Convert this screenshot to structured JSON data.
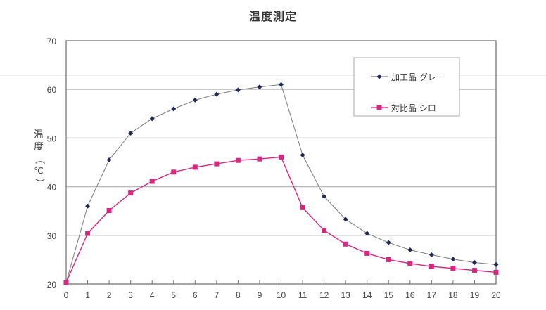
{
  "chart_data": {
    "type": "line",
    "title": "温度測定",
    "xlabel": "",
    "ylabel": "温度（℃）",
    "ylim": [
      20,
      70
    ],
    "xlim": [
      0,
      20
    ],
    "yticks": [
      20,
      30,
      40,
      50,
      60,
      70
    ],
    "x": [
      0,
      1,
      2,
      3,
      4,
      5,
      6,
      7,
      8,
      9,
      10,
      11,
      12,
      13,
      14,
      15,
      16,
      17,
      18,
      19,
      20
    ],
    "grid": true,
    "legend_position": "upper right",
    "series": [
      {
        "name": "加工品 グレー",
        "color": "#1f2a5a",
        "line_color": "#7a7a7a",
        "marker": "diamond",
        "values": [
          20.3,
          36.0,
          45.5,
          51.0,
          54.0,
          56.0,
          57.8,
          59.0,
          59.9,
          60.5,
          61.0,
          46.5,
          38.0,
          33.3,
          30.4,
          28.5,
          27.0,
          26.0,
          25.1,
          24.4,
          24.0
        ]
      },
      {
        "name": "対比品 シロ",
        "color": "#d9267f",
        "line_color": "#d9267f",
        "marker": "square",
        "values": [
          20.3,
          30.4,
          35.1,
          38.7,
          41.1,
          43.0,
          44.0,
          44.7,
          45.4,
          45.7,
          46.1,
          35.7,
          31.0,
          28.2,
          26.3,
          25.0,
          24.2,
          23.6,
          23.2,
          22.8,
          22.4
        ]
      }
    ]
  },
  "labels": {
    "title": "温度測定",
    "ylabel_chars": [
      "温",
      "度",
      "（",
      "℃",
      "）"
    ]
  }
}
